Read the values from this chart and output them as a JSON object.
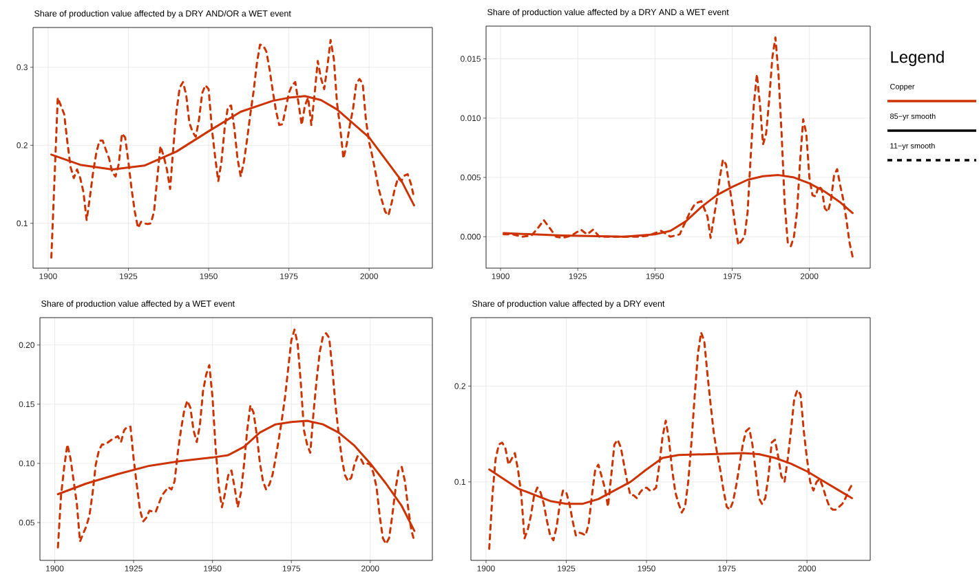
{
  "chart_data": [
    {
      "type": "line",
      "title": "Share of production value affected by a DRY AND/OR a WET event",
      "xlim": [
        1895.3,
        2019.7
      ],
      "ylim": [
        0.0425,
        0.351
      ],
      "xticks": [
        1900,
        1925,
        1950,
        1975,
        2000
      ],
      "yticks": [
        0.1,
        0.2,
        0.3
      ],
      "grid": true,
      "series": [
        {
          "color": "#cc3300",
          "line_style": "solid",
          "x": [
            1901,
            1910,
            1920,
            1930,
            1940,
            1950,
            1960,
            1970,
            1975,
            1980,
            1985,
            1990,
            2000,
            2010,
            2014
          ],
          "values": [
            0.188,
            0.175,
            0.169,
            0.174,
            0.192,
            0.218,
            0.243,
            0.257,
            0.261,
            0.263,
            0.258,
            0.246,
            0.21,
            0.155,
            0.123
          ]
        },
        {
          "color": "#cc3300",
          "line_style": "dashed",
          "x": [
            1901,
            1902,
            1903,
            1905,
            1906,
            1907,
            1908,
            1909,
            1910,
            1911,
            1912,
            1913,
            1914,
            1915,
            1916,
            1917,
            1918,
            1919,
            1920,
            1921,
            1922,
            1923,
            1924,
            1925,
            1926,
            1927,
            1928,
            1929,
            1930,
            1931,
            1932,
            1933,
            1934,
            1935,
            1936,
            1937,
            1938,
            1939,
            1940,
            1941,
            1942,
            1943,
            1944,
            1945,
            1946,
            1947,
            1948,
            1949,
            1950,
            1951,
            1952,
            1953,
            1954,
            1955,
            1956,
            1957,
            1958,
            1959,
            1960,
            1961,
            1962,
            1963,
            1964,
            1965,
            1966,
            1967,
            1968,
            1969,
            1970,
            1971,
            1972,
            1973,
            1974,
            1975,
            1976,
            1977,
            1978,
            1979,
            1980,
            1981,
            1982,
            1983,
            1984,
            1985,
            1986,
            1987,
            1988,
            1989,
            1990,
            1991,
            1992,
            1993,
            1994,
            1995,
            1996,
            1997,
            1998,
            1999,
            2000,
            2001,
            2002,
            2003,
            2004,
            2005,
            2006,
            2007,
            2008,
            2009,
            2010,
            2011,
            2012,
            2013,
            2014
          ],
          "values": [
            0.056,
            0.158,
            0.261,
            0.24,
            0.204,
            0.172,
            0.158,
            0.169,
            0.158,
            0.14,
            0.104,
            0.133,
            0.165,
            0.19,
            0.206,
            0.206,
            0.194,
            0.183,
            0.165,
            0.16,
            0.176,
            0.215,
            0.21,
            0.179,
            0.144,
            0.115,
            0.094,
            0.102,
            0.1,
            0.099,
            0.1,
            0.115,
            0.158,
            0.199,
            0.186,
            0.169,
            0.144,
            0.197,
            0.244,
            0.274,
            0.281,
            0.265,
            0.229,
            0.217,
            0.211,
            0.233,
            0.267,
            0.277,
            0.272,
            0.222,
            0.186,
            0.154,
            0.179,
            0.222,
            0.249,
            0.251,
            0.222,
            0.183,
            0.16,
            0.179,
            0.208,
            0.24,
            0.269,
            0.304,
            0.329,
            0.328,
            0.32,
            0.297,
            0.269,
            0.244,
            0.226,
            0.227,
            0.247,
            0.267,
            0.277,
            0.281,
            0.254,
            0.226,
            0.251,
            0.261,
            0.226,
            0.265,
            0.308,
            0.286,
            0.272,
            0.301,
            0.335,
            0.311,
            0.254,
            0.222,
            0.183,
            0.201,
            0.226,
            0.247,
            0.279,
            0.285,
            0.279,
            0.233,
            0.204,
            0.186,
            0.165,
            0.144,
            0.129,
            0.115,
            0.11,
            0.126,
            0.144,
            0.158,
            0.154,
            0.161,
            0.163,
            0.151,
            0.133
          ]
        }
      ]
    },
    {
      "type": "line",
      "title": "Share of production value affected by a DRY AND a WET event",
      "xlim": [
        1895.3,
        2019.7
      ],
      "ylim": [
        -0.00265,
        0.01776
      ],
      "xticks": [
        1900,
        1925,
        1950,
        1975,
        2000
      ],
      "yticks": [
        {
          "value": 0,
          "label": "0.000"
        },
        {
          "value": 0.005,
          "label": "0.005"
        },
        {
          "value": 0.01,
          "label": "0.010"
        },
        {
          "value": 0.015,
          "label": "0.015"
        }
      ],
      "grid": true,
      "legend": "right",
      "legend_title": "Legend",
      "annotations": [
        "Copper"
      ],
      "series": [
        {
          "name": "85−yr smooth",
          "color": "#cc3300",
          "line_style": "solid",
          "x": [
            1901,
            1920,
            1940,
            1950,
            1955,
            1960,
            1965,
            1970,
            1975,
            1980,
            1985,
            1990,
            1995,
            2000,
            2005,
            2010,
            2014
          ],
          "values": [
            0.0003,
            0.0001,
            0.0,
            0.0002,
            0.0005,
            0.0013,
            0.0025,
            0.0035,
            0.0042,
            0.0048,
            0.0051,
            0.0052,
            0.005,
            0.0045,
            0.0038,
            0.0029,
            0.002
          ]
        },
        {
          "name": "11−yr smooth",
          "color": "#cc3300",
          "line_style": "dashed",
          "x": [
            1901,
            1904,
            1907,
            1910,
            1912,
            1914,
            1916,
            1918,
            1920,
            1923,
            1926,
            1928,
            1930,
            1932,
            1935,
            1940,
            1945,
            1948,
            1952,
            1955,
            1958,
            1961,
            1963,
            1965,
            1967,
            1968,
            1970,
            1971,
            1972,
            1973,
            1975,
            1976,
            1977,
            1979,
            1980,
            1981,
            1982,
            1983,
            1984,
            1985,
            1986,
            1987,
            1988,
            1989,
            1990,
            1991,
            1992,
            1993,
            1994,
            1995,
            1996,
            1997,
            1998,
            1999,
            2000,
            2001,
            2002,
            2003,
            2004,
            2005,
            2006,
            2007,
            2008,
            2009,
            2010,
            2011,
            2012,
            2013,
            2014
          ],
          "values": [
            0.0002,
            0.0002,
            0.0,
            0.0001,
            0.0007,
            0.0014,
            0.0007,
            0.0,
            -0.0001,
            0.0001,
            0.0006,
            0.0002,
            0.0006,
            0.0,
            0.0,
            0.0,
            0.0,
            0.0001,
            0.0005,
            0.0,
            0.0002,
            0.0019,
            0.0028,
            0.003,
            0.0017,
            -0.0001,
            0.0031,
            0.005,
            0.0065,
            0.0061,
            0.0028,
            0.0009,
            -0.0007,
            0.0,
            0.0021,
            0.0068,
            0.0111,
            0.0137,
            0.0111,
            0.0078,
            0.0087,
            0.0116,
            0.0151,
            0.0168,
            0.0137,
            0.0087,
            0.0028,
            -0.0005,
            -0.0008,
            0.0,
            0.0021,
            0.0064,
            0.0099,
            0.0087,
            0.005,
            0.0035,
            0.0034,
            0.0043,
            0.004,
            0.0024,
            0.0021,
            0.0031,
            0.0052,
            0.0057,
            0.0043,
            0.0031,
            0.0014,
            -0.0005,
            -0.0017
          ]
        }
      ]
    },
    {
      "type": "line",
      "title": "Share of production value affected by a WET event",
      "xlim": [
        1895.3,
        2019.7
      ],
      "ylim": [
        0.0181,
        0.2231
      ],
      "xticks": [
        1900,
        1925,
        1950,
        1975,
        2000
      ],
      "yticks": [
        {
          "value": 0.05,
          "label": "0.05"
        },
        {
          "value": 0.1,
          "label": "0.10"
        },
        {
          "value": 0.15,
          "label": "0.15"
        },
        {
          "value": 0.2,
          "label": "0.20"
        }
      ],
      "grid": true,
      "series": [
        {
          "color": "#cc3300",
          "line_style": "solid",
          "x": [
            1901,
            1910,
            1920,
            1930,
            1940,
            1950,
            1955,
            1960,
            1965,
            1970,
            1975,
            1980,
            1985,
            1990,
            1995,
            2000,
            2005,
            2010,
            2014
          ],
          "values": [
            0.074,
            0.083,
            0.091,
            0.098,
            0.102,
            0.105,
            0.107,
            0.114,
            0.126,
            0.133,
            0.135,
            0.136,
            0.133,
            0.126,
            0.115,
            0.1,
            0.083,
            0.064,
            0.043
          ]
        },
        {
          "color": "#cc3300",
          "line_style": "dashed",
          "x": [
            1901,
            1902,
            1903,
            1904,
            1905,
            1906,
            1907,
            1908,
            1910,
            1911,
            1912,
            1913,
            1914,
            1915,
            1916,
            1918,
            1920,
            1921,
            1922,
            1923,
            1924,
            1925,
            1926,
            1927,
            1928,
            1929,
            1930,
            1932,
            1934,
            1936,
            1937,
            1938,
            1939,
            1940,
            1941,
            1942,
            1943,
            1944,
            1945,
            1946,
            1947,
            1948,
            1949,
            1950,
            1951,
            1952,
            1953,
            1954,
            1955,
            1956,
            1957,
            1958,
            1959,
            1960,
            1961,
            1962,
            1963,
            1964,
            1965,
            1966,
            1967,
            1968,
            1969,
            1970,
            1971,
            1972,
            1973,
            1974,
            1975,
            1976,
            1977,
            1978,
            1979,
            1980,
            1981,
            1982,
            1983,
            1984,
            1985,
            1986,
            1987,
            1988,
            1989,
            1990,
            1991,
            1992,
            1993,
            1994,
            1995,
            1996,
            1997,
            1998,
            1999,
            2000,
            2001,
            2002,
            2003,
            2004,
            2005,
            2006,
            2007,
            2008,
            2009,
            2010,
            2011,
            2012,
            2013,
            2014
          ],
          "values": [
            0.029,
            0.073,
            0.097,
            0.116,
            0.104,
            0.085,
            0.066,
            0.034,
            0.047,
            0.056,
            0.075,
            0.099,
            0.111,
            0.116,
            0.116,
            0.12,
            0.123,
            0.118,
            0.128,
            0.131,
            0.131,
            0.104,
            0.082,
            0.061,
            0.051,
            0.054,
            0.06,
            0.059,
            0.073,
            0.08,
            0.078,
            0.085,
            0.109,
            0.128,
            0.144,
            0.153,
            0.147,
            0.128,
            0.118,
            0.132,
            0.161,
            0.175,
            0.183,
            0.156,
            0.113,
            0.08,
            0.063,
            0.075,
            0.09,
            0.094,
            0.08,
            0.063,
            0.075,
            0.099,
            0.128,
            0.149,
            0.143,
            0.125,
            0.101,
            0.085,
            0.078,
            0.082,
            0.09,
            0.104,
            0.12,
            0.137,
            0.156,
            0.18,
            0.204,
            0.213,
            0.201,
            0.168,
            0.128,
            0.116,
            0.109,
            0.142,
            0.17,
            0.194,
            0.207,
            0.21,
            0.206,
            0.18,
            0.149,
            0.125,
            0.104,
            0.09,
            0.085,
            0.088,
            0.099,
            0.106,
            0.104,
            0.099,
            0.1,
            0.099,
            0.092,
            0.08,
            0.056,
            0.037,
            0.032,
            0.037,
            0.056,
            0.078,
            0.094,
            0.097,
            0.085,
            0.063,
            0.044,
            0.034
          ]
        }
      ]
    },
    {
      "type": "line",
      "title": "Share of production value affected by a DRY event",
      "xlim": [
        1895.3,
        2019.7
      ],
      "ylim": [
        0.018,
        0.2715
      ],
      "xticks": [
        1900,
        1925,
        1950,
        1975,
        2000
      ],
      "yticks": [
        0.1,
        0.2
      ],
      "grid": true,
      "series": [
        {
          "color": "#cc3300",
          "line_style": "solid",
          "x": [
            1901,
            1910,
            1920,
            1925,
            1930,
            1935,
            1940,
            1945,
            1950,
            1955,
            1960,
            1970,
            1980,
            1985,
            1990,
            1995,
            2000,
            2005,
            2010,
            2014
          ],
          "values": [
            0.113,
            0.093,
            0.08,
            0.077,
            0.077,
            0.082,
            0.091,
            0.1,
            0.113,
            0.125,
            0.128,
            0.129,
            0.13,
            0.129,
            0.125,
            0.119,
            0.111,
            0.101,
            0.091,
            0.083
          ]
        },
        {
          "color": "#cc3300",
          "line_style": "dashed",
          "x": [
            1901,
            1902,
            1903,
            1904,
            1905,
            1906,
            1907,
            1908,
            1909,
            1910,
            1911,
            1912,
            1913,
            1914,
            1915,
            1916,
            1917,
            1918,
            1919,
            1920,
            1921,
            1922,
            1923,
            1924,
            1925,
            1926,
            1927,
            1928,
            1929,
            1930,
            1931,
            1932,
            1933,
            1934,
            1935,
            1936,
            1937,
            1938,
            1939,
            1940,
            1941,
            1942,
            1943,
            1944,
            1945,
            1946,
            1947,
            1948,
            1949,
            1950,
            1951,
            1952,
            1953,
            1954,
            1955,
            1956,
            1957,
            1958,
            1959,
            1960,
            1961,
            1962,
            1963,
            1964,
            1965,
            1966,
            1967,
            1968,
            1969,
            1970,
            1971,
            1972,
            1973,
            1974,
            1975,
            1976,
            1977,
            1978,
            1979,
            1980,
            1981,
            1982,
            1983,
            1984,
            1985,
            1986,
            1987,
            1988,
            1989,
            1990,
            1991,
            1992,
            1993,
            1994,
            1995,
            1996,
            1997,
            1998,
            1999,
            2000,
            2001,
            2002,
            2003,
            2004,
            2005,
            2006,
            2007,
            2008,
            2009,
            2010,
            2011,
            2012,
            2013,
            2014
          ],
          "values": [
            0.03,
            0.086,
            0.124,
            0.139,
            0.141,
            0.136,
            0.118,
            0.124,
            0.13,
            0.112,
            0.086,
            0.041,
            0.05,
            0.065,
            0.086,
            0.094,
            0.089,
            0.077,
            0.059,
            0.044,
            0.039,
            0.053,
            0.077,
            0.091,
            0.089,
            0.077,
            0.059,
            0.044,
            0.047,
            0.046,
            0.044,
            0.056,
            0.086,
            0.112,
            0.118,
            0.106,
            0.094,
            0.074,
            0.106,
            0.139,
            0.144,
            0.136,
            0.118,
            0.1,
            0.086,
            0.086,
            0.083,
            0.089,
            0.093,
            0.094,
            0.091,
            0.091,
            0.094,
            0.118,
            0.147,
            0.164,
            0.144,
            0.112,
            0.089,
            0.077,
            0.068,
            0.074,
            0.1,
            0.141,
            0.189,
            0.233,
            0.256,
            0.247,
            0.212,
            0.18,
            0.15,
            0.13,
            0.112,
            0.091,
            0.074,
            0.071,
            0.08,
            0.097,
            0.118,
            0.139,
            0.153,
            0.156,
            0.139,
            0.112,
            0.083,
            0.077,
            0.083,
            0.106,
            0.141,
            0.144,
            0.127,
            0.106,
            0.1,
            0.124,
            0.153,
            0.186,
            0.196,
            0.191,
            0.153,
            0.124,
            0.1,
            0.091,
            0.1,
            0.103,
            0.094,
            0.083,
            0.074,
            0.071,
            0.071,
            0.074,
            0.077,
            0.083,
            0.091,
            0.097
          ]
        }
      ]
    }
  ]
}
